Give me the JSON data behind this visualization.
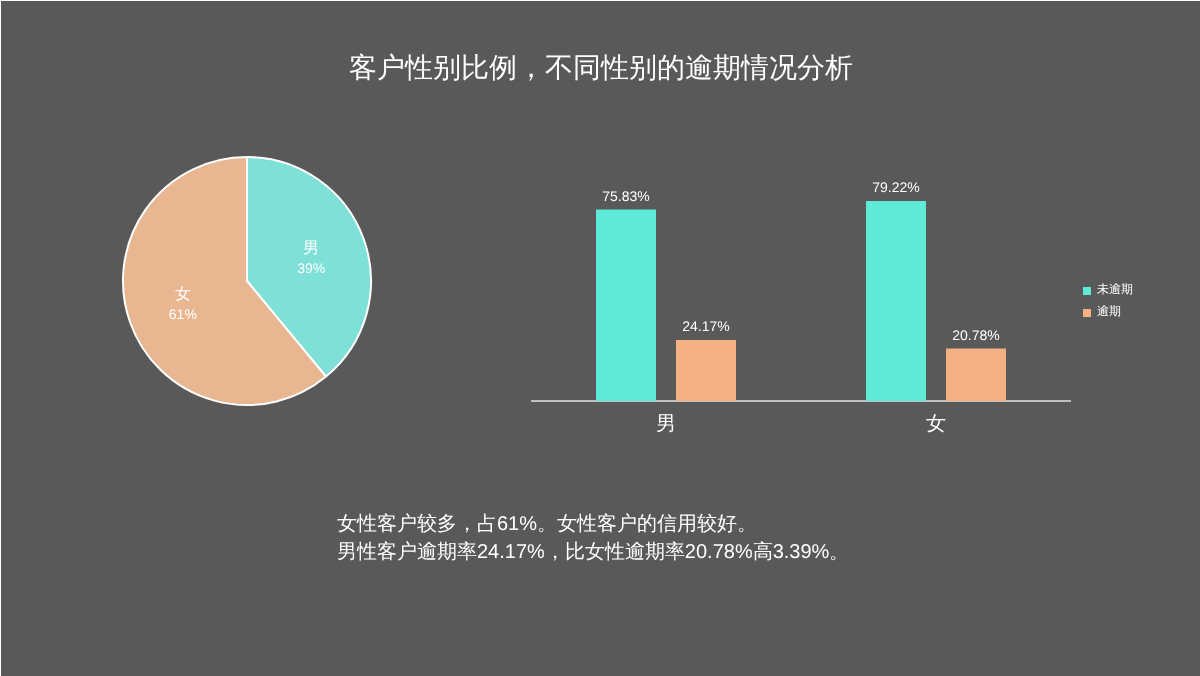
{
  "chart_data": [
    {
      "type": "pie",
      "title": "客户性别比例，不同性别的逾期情况分析",
      "categories": [
        "男",
        "女"
      ],
      "values": [
        39,
        61
      ],
      "colors": [
        "#7fe0d8",
        "#e8b690"
      ],
      "value_labels": [
        "39%",
        "61%"
      ]
    },
    {
      "type": "bar",
      "categories": [
        "男",
        "女"
      ],
      "series": [
        {
          "name": "未逾期",
          "color": "#5eead7",
          "values": [
            75.83,
            79.22
          ],
          "value_labels": [
            "75.83%",
            "79.22%"
          ]
        },
        {
          "name": "逾期",
          "color": "#f4b183",
          "values": [
            24.17,
            20.78
          ],
          "value_labels": [
            "24.17%",
            "20.78%"
          ]
        }
      ],
      "legend": "right",
      "annotations": [
        "女性客户较多，占61%。女性客户的信用较好。",
        "男性客户逾期率24.17%，比女性逾期率20.78%高3.39%。"
      ]
    }
  ]
}
